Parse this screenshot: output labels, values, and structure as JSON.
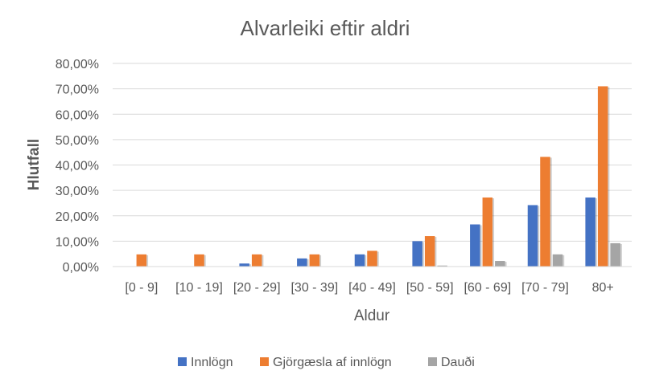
{
  "chart_data": {
    "type": "bar",
    "title": "Alvarleiki eftir aldri",
    "xlabel": "Aldur",
    "ylabel": "Hlutfall",
    "ylim": [
      0,
      80
    ],
    "ytick_labels": [
      "0,00%",
      "10,00%",
      "20,00%",
      "30,00%",
      "40,00%",
      "50,00%",
      "60,00%",
      "70,00%",
      "80,00%"
    ],
    "categories": [
      "[0 - 9]",
      "[10 - 19]",
      "[20 - 29]",
      "[30 - 39]",
      "[40 - 49]",
      "[50 - 59]",
      "[60 - 69]",
      "[70 - 79]",
      "80+"
    ],
    "series": [
      {
        "name": "Innlögn",
        "color": "#4472C4",
        "values": [
          0.0,
          0.0,
          1.2,
          3.2,
          4.8,
          10.0,
          16.6,
          24.2,
          27.2
        ]
      },
      {
        "name": "Gjörgæsla af innlögn",
        "color": "#ED7D31",
        "values": [
          4.8,
          4.8,
          4.8,
          4.8,
          6.2,
          12.0,
          27.2,
          43.2,
          71.0
        ]
      },
      {
        "name": "Dauði",
        "color": "#A5A5A5",
        "values": [
          0.0,
          0.0,
          0.0,
          0.0,
          0.0,
          0.4,
          2.2,
          4.8,
          9.2
        ]
      }
    ],
    "grid": true,
    "legend_position": "bottom"
  }
}
